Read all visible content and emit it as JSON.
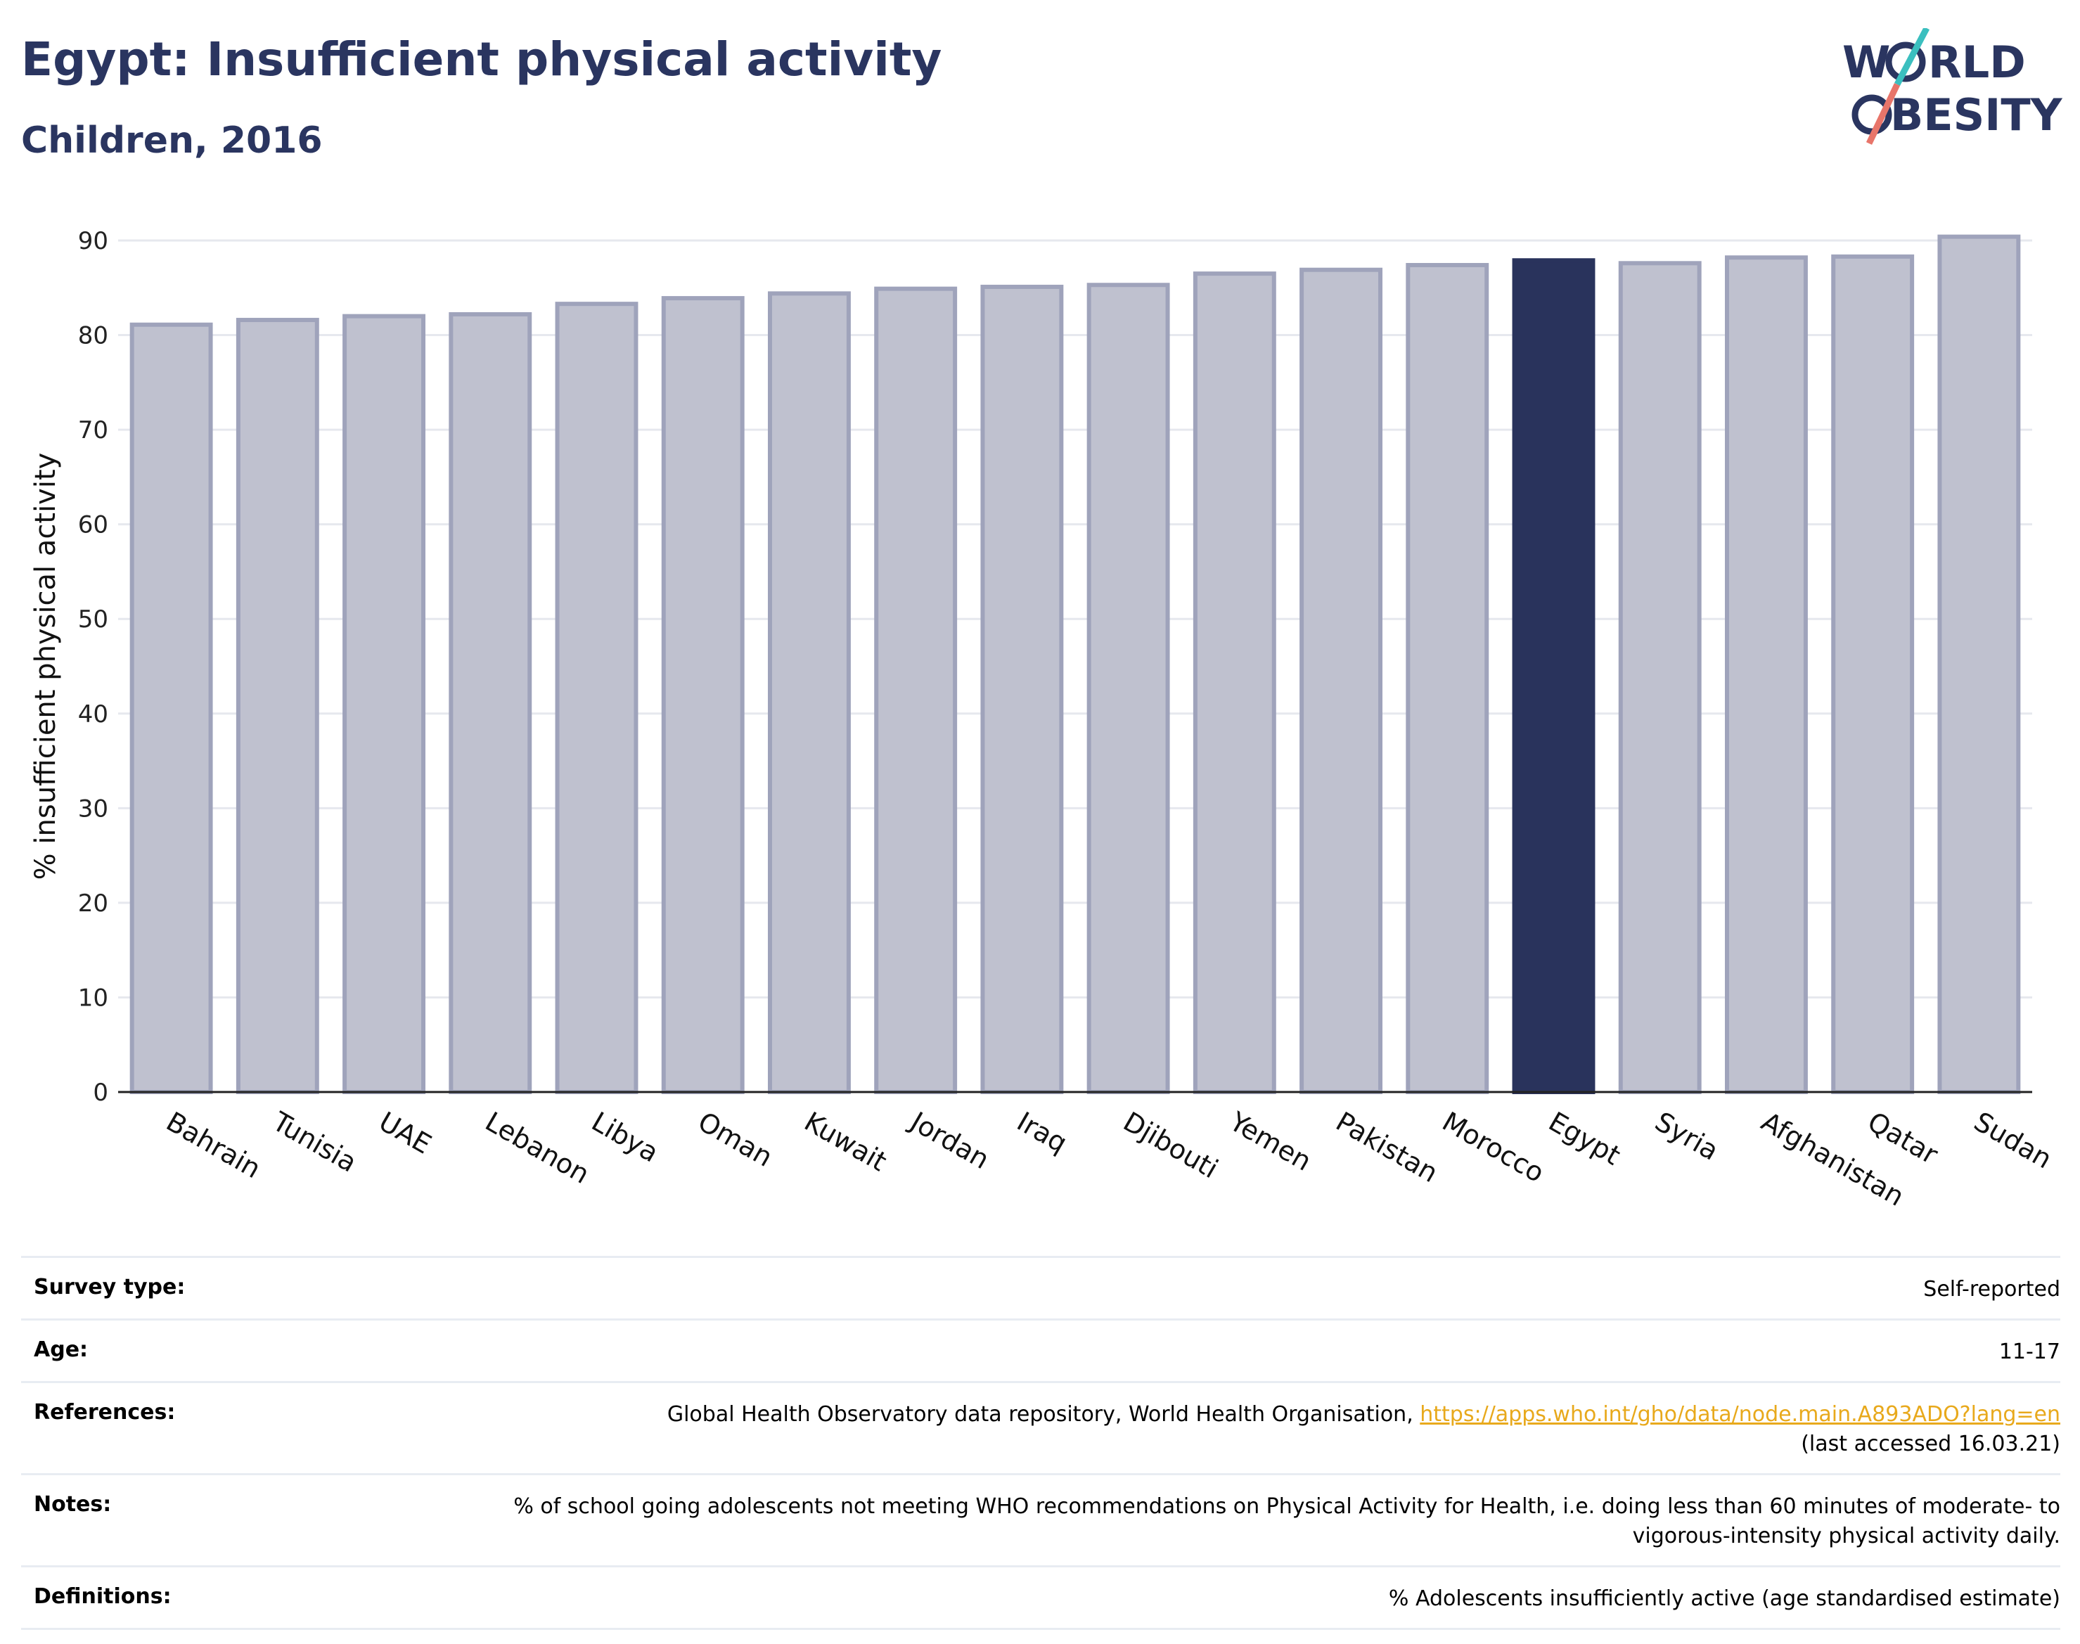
{
  "title": "Egypt: Insufficient physical activity",
  "subtitle": "Children, 2016",
  "logo": {
    "line1_a": "W",
    "line1_b": "RLD",
    "line2_a": "",
    "line2_b": "BESITY"
  },
  "colors": {
    "highlight": "#29335c",
    "bar": "#bfc1cf",
    "bar_edge": "#9fa3bb",
    "title": "#2a3560",
    "link": "#e8a91c"
  },
  "chart_data": {
    "type": "bar",
    "ylabel": "% insufficient physical activity",
    "ylim": [
      0,
      90
    ],
    "yticks": [
      0,
      10,
      20,
      30,
      40,
      50,
      60,
      70,
      80,
      90
    ],
    "grid": true,
    "highlight": "Egypt",
    "categories": [
      "Bahrain",
      "Tunisia",
      "UAE",
      "Lebanon",
      "Libya",
      "Oman",
      "Kuwait",
      "Jordan",
      "Iraq",
      "Djibouti",
      "Yemen",
      "Pakistan",
      "Morocco",
      "Egypt",
      "Syria",
      "Afghanistan",
      "Qatar",
      "Sudan"
    ],
    "values": [
      81.1,
      81.6,
      82.0,
      82.2,
      83.3,
      83.9,
      84.4,
      84.9,
      85.1,
      85.3,
      86.5,
      86.9,
      87.4,
      87.9,
      87.6,
      88.2,
      88.3,
      90.4
    ]
  },
  "info": [
    {
      "key": "Survey type:",
      "value": "Self-reported"
    },
    {
      "key": "Age:",
      "value": "11-17"
    },
    {
      "key": "References:",
      "value": "Global Health Observatory data repository, World Health Organisation, ",
      "link": "https://apps.who.int/gho/data/node.main.A893ADO?lang=en",
      "value2": "(last accessed 16.03.21)"
    },
    {
      "key": "Notes:",
      "value": "% of school going adolescents not meeting WHO recommendations on Physical Activity for Health, i.e. doing less than 60 minutes of moderate- to vigorous-intensity physical activity daily."
    },
    {
      "key": "Definitions:",
      "value": "% Adolescents insufficiently active (age standardised estimate)"
    }
  ]
}
